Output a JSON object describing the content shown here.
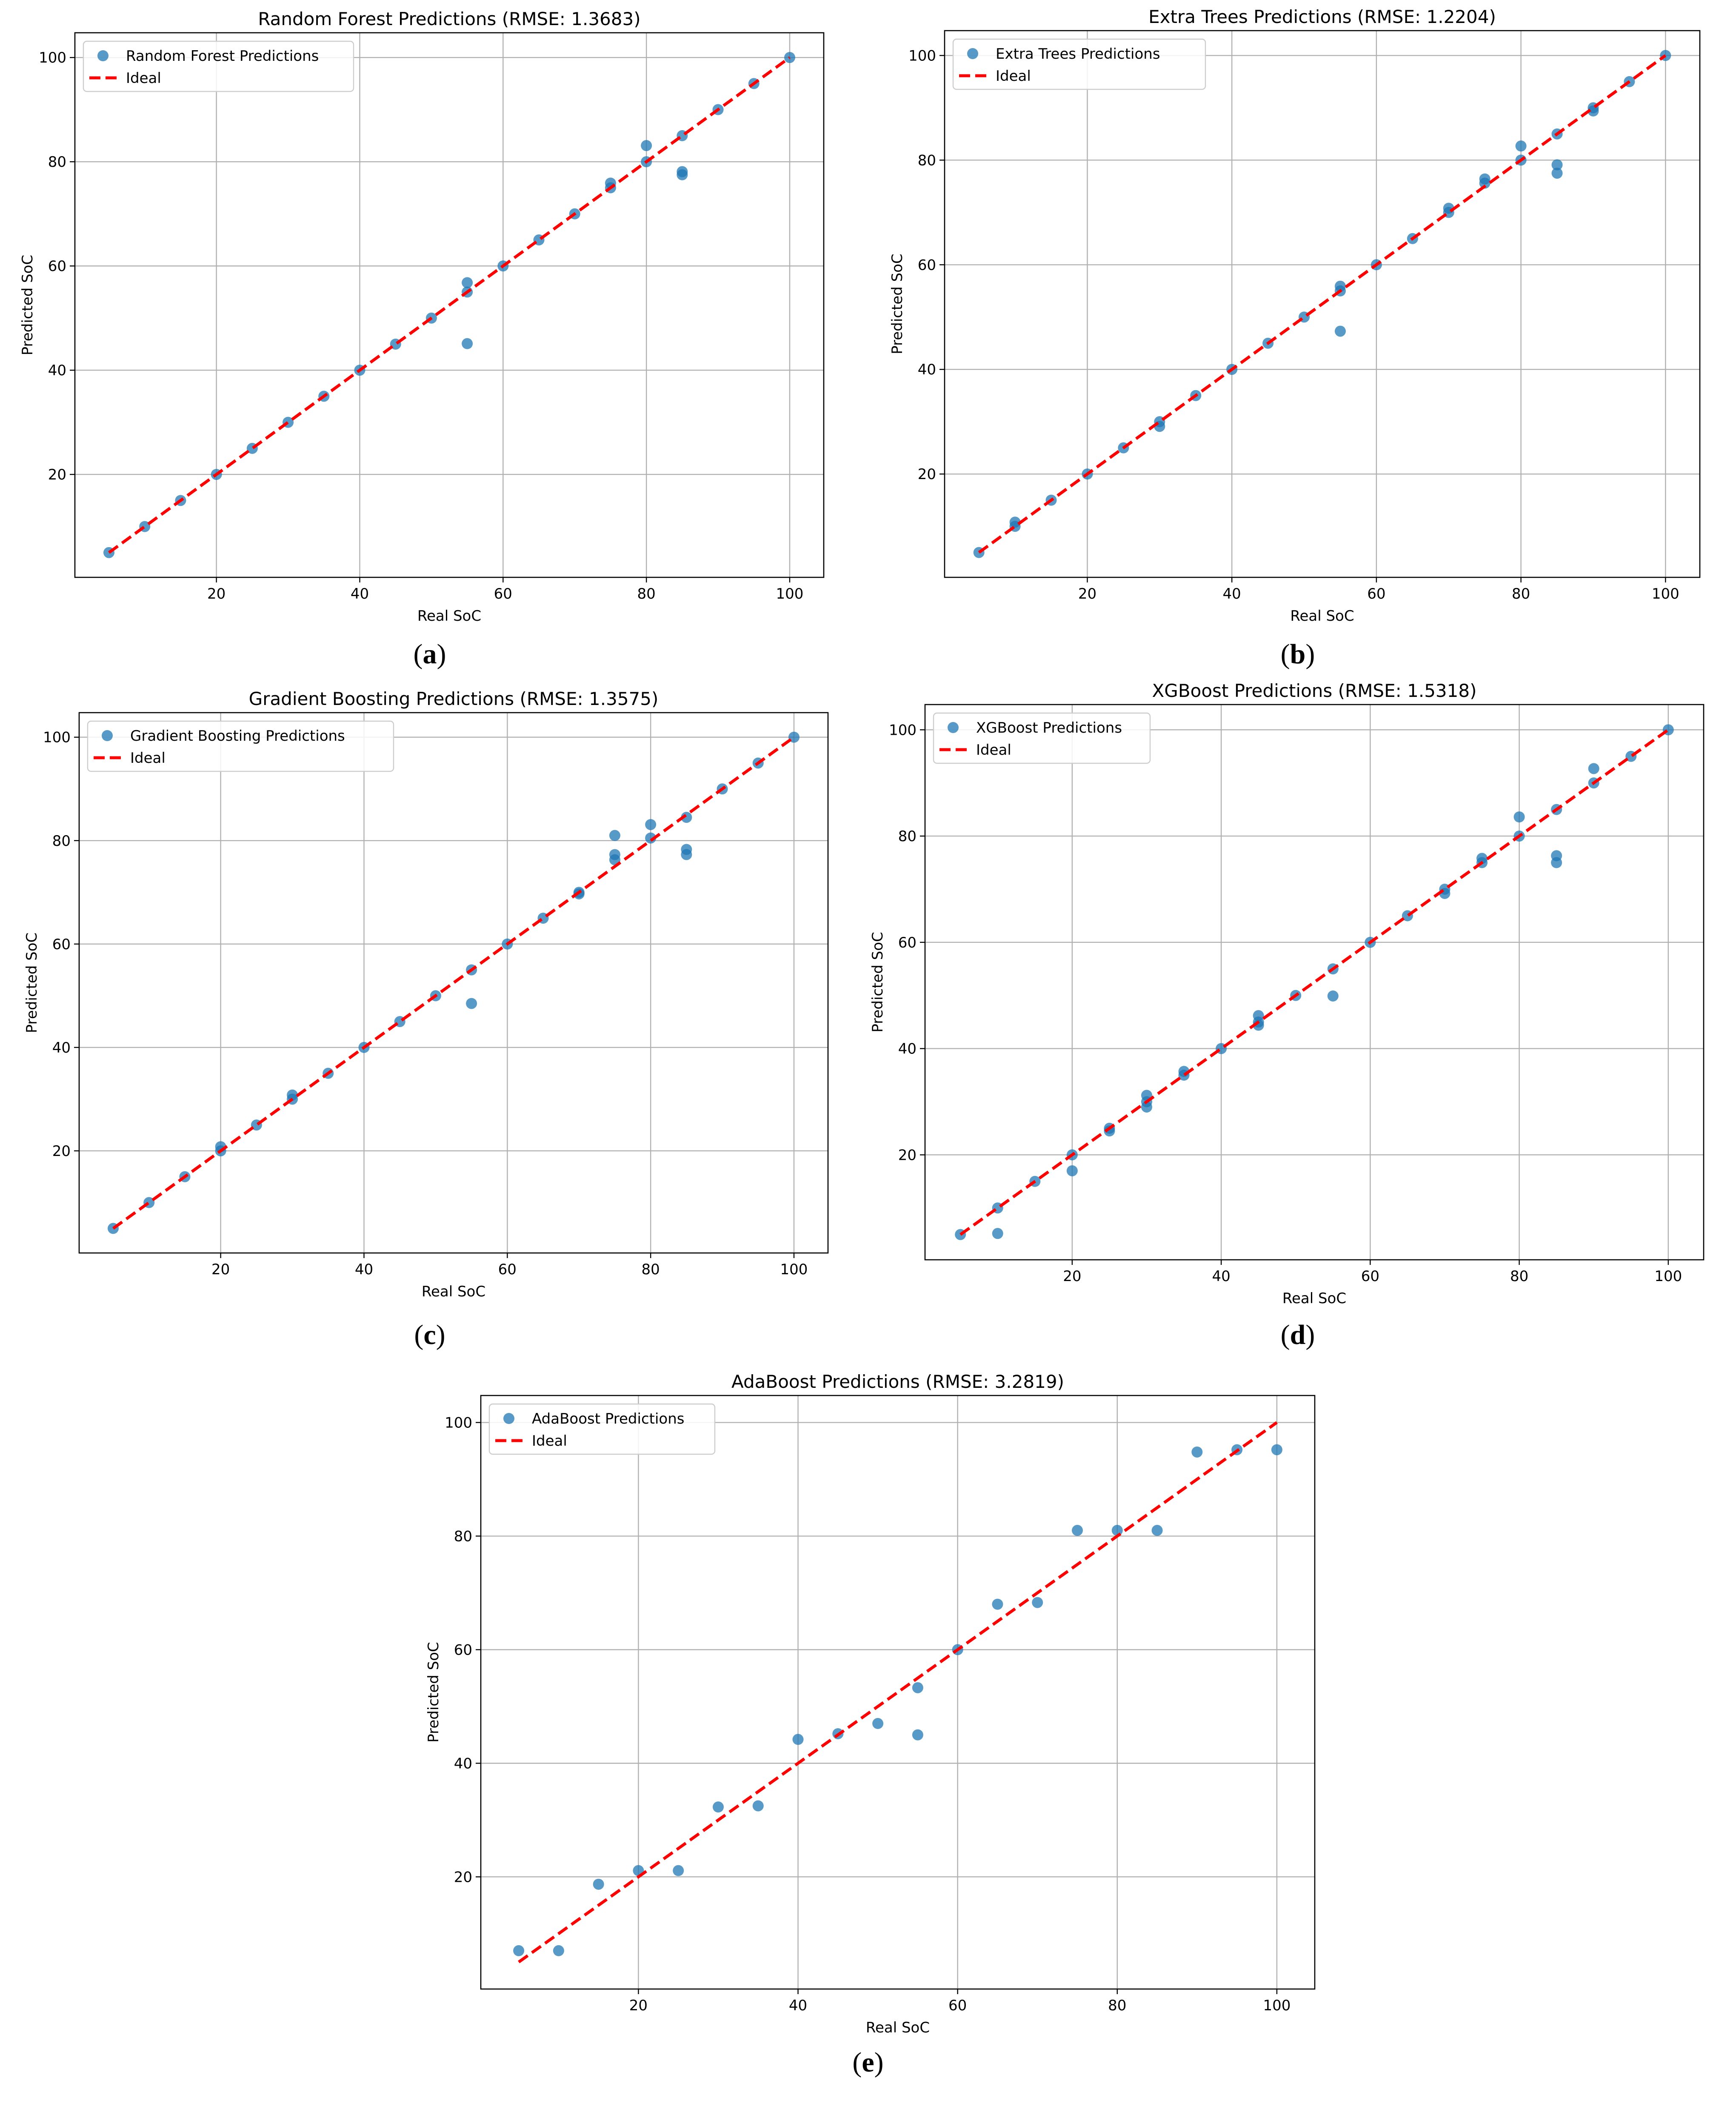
{
  "chart_data": [
    {
      "type": "scatter",
      "title": "Random Forest Predictions (RMSE: 1.3683)",
      "xlabel": "Real SoC",
      "ylabel": "Predicted SoC",
      "xlim": [
        0.25,
        104.75
      ],
      "ylim": [
        0.25,
        104.75
      ],
      "xticks": [
        20,
        40,
        60,
        80,
        100
      ],
      "yticks": [
        20,
        40,
        60,
        80,
        100
      ],
      "grid": true,
      "legend_position": "upper-left",
      "caption": "a",
      "series": [
        {
          "name": "Random Forest Predictions",
          "color": "#1f77b4",
          "points": [
            [
              5,
              5
            ],
            [
              10,
              10
            ],
            [
              15,
              15
            ],
            [
              20,
              20
            ],
            [
              25,
              25
            ],
            [
              30,
              30
            ],
            [
              35,
              35
            ],
            [
              40,
              40
            ],
            [
              45,
              45
            ],
            [
              50,
              50
            ],
            [
              55,
              55
            ],
            [
              55,
              56.8
            ],
            [
              55,
              45.1
            ],
            [
              60,
              60
            ],
            [
              65,
              65
            ],
            [
              70,
              70
            ],
            [
              75,
              75
            ],
            [
              75,
              75.9
            ],
            [
              80,
              80
            ],
            [
              80,
              83.1
            ],
            [
              85,
              85
            ],
            [
              85,
              78.1
            ],
            [
              85,
              77.5
            ],
            [
              90,
              90
            ],
            [
              95,
              95
            ],
            [
              100,
              100
            ]
          ]
        },
        {
          "name": "Ideal",
          "color": "#ff0000",
          "line": [
            [
              5,
              5
            ],
            [
              100,
              100
            ]
          ]
        }
      ]
    },
    {
      "type": "scatter",
      "title": "Extra Trees Predictions (RMSE: 1.2204)",
      "xlabel": "Real SoC",
      "ylabel": "Predicted SoC",
      "xlim": [
        0.25,
        104.75
      ],
      "ylim": [
        0.25,
        104.75
      ],
      "xticks": [
        20,
        40,
        60,
        80,
        100
      ],
      "yticks": [
        20,
        40,
        60,
        80,
        100
      ],
      "grid": true,
      "legend_position": "upper-left",
      "caption": "b",
      "series": [
        {
          "name": "Extra Trees Predictions",
          "color": "#1f77b4",
          "points": [
            [
              5,
              5
            ],
            [
              10,
              10
            ],
            [
              10,
              10.8
            ],
            [
              15,
              15
            ],
            [
              20,
              20
            ],
            [
              25,
              25
            ],
            [
              30,
              30
            ],
            [
              30,
              29.1
            ],
            [
              35,
              35
            ],
            [
              40,
              40
            ],
            [
              45,
              45
            ],
            [
              50,
              50
            ],
            [
              55,
              55
            ],
            [
              55,
              55.9
            ],
            [
              55,
              47.3
            ],
            [
              60,
              60
            ],
            [
              65,
              65
            ],
            [
              70,
              70
            ],
            [
              70,
              70.8
            ],
            [
              75,
              75.6
            ],
            [
              75,
              76.4
            ],
            [
              80,
              80
            ],
            [
              80,
              82.7
            ],
            [
              85,
              85
            ],
            [
              85,
              79.1
            ],
            [
              85,
              77.5
            ],
            [
              90,
              90
            ],
            [
              90,
              89.4
            ],
            [
              95,
              95
            ],
            [
              100,
              100
            ]
          ]
        },
        {
          "name": "Ideal",
          "color": "#ff0000",
          "line": [
            [
              5,
              5
            ],
            [
              100,
              100
            ]
          ]
        }
      ]
    },
    {
      "type": "scatter",
      "title": "Gradient Boosting Predictions (RMSE: 1.3575)",
      "xlabel": "Real SoC",
      "ylabel": "Predicted SoC",
      "xlim": [
        0.25,
        104.75
      ],
      "ylim": [
        0.25,
        104.75
      ],
      "xticks": [
        20,
        40,
        60,
        80,
        100
      ],
      "yticks": [
        20,
        40,
        60,
        80,
        100
      ],
      "grid": true,
      "legend_position": "upper-left",
      "caption": "c",
      "series": [
        {
          "name": "Gradient Boosting Predictions",
          "color": "#1f77b4",
          "points": [
            [
              5,
              5
            ],
            [
              10,
              10
            ],
            [
              15,
              15
            ],
            [
              20,
              20
            ],
            [
              20,
              20.8
            ],
            [
              25,
              25
            ],
            [
              30,
              30
            ],
            [
              30,
              30.8
            ],
            [
              35,
              35
            ],
            [
              40,
              40
            ],
            [
              45,
              45
            ],
            [
              50,
              50
            ],
            [
              55,
              55
            ],
            [
              55,
              48.5
            ],
            [
              60,
              60
            ],
            [
              65,
              65
            ],
            [
              70,
              70
            ],
            [
              70,
              69.7
            ],
            [
              75,
              76.3
            ],
            [
              75,
              77.3
            ],
            [
              75,
              81
            ],
            [
              80,
              80.5
            ],
            [
              80,
              83.1
            ],
            [
              85,
              84.5
            ],
            [
              85,
              78.3
            ],
            [
              85,
              77.3
            ],
            [
              90,
              90
            ],
            [
              95,
              95
            ],
            [
              100,
              100
            ]
          ]
        },
        {
          "name": "Ideal",
          "color": "#ff0000",
          "line": [
            [
              5,
              5
            ],
            [
              100,
              100
            ]
          ]
        }
      ]
    },
    {
      "type": "scatter",
      "title": "XGBoost Predictions (RMSE: 1.5318)",
      "xlabel": "Real SoC",
      "ylabel": "Predicted SoC",
      "xlim": [
        0.25,
        104.75
      ],
      "ylim": [
        0.25,
        104.75
      ],
      "xticks": [
        20,
        40,
        60,
        80,
        100
      ],
      "yticks": [
        20,
        40,
        60,
        80,
        100
      ],
      "grid": true,
      "legend_position": "upper-left",
      "caption": "d",
      "series": [
        {
          "name": "XGBoost Predictions",
          "color": "#1f77b4",
          "points": [
            [
              5,
              5
            ],
            [
              10,
              10
            ],
            [
              10,
              5.2
            ],
            [
              15,
              15
            ],
            [
              20,
              20
            ],
            [
              20,
              17
            ],
            [
              25,
              25
            ],
            [
              25,
              24.5
            ],
            [
              30,
              30
            ],
            [
              30,
              29
            ],
            [
              30,
              31.2
            ],
            [
              35,
              35
            ],
            [
              35,
              35.7
            ],
            [
              40,
              40
            ],
            [
              45,
              45
            ],
            [
              45,
              46.2
            ],
            [
              45,
              44.4
            ],
            [
              50,
              50
            ],
            [
              55,
              55
            ],
            [
              55,
              49.9
            ],
            [
              60,
              60
            ],
            [
              65,
              65
            ],
            [
              70,
              70
            ],
            [
              70,
              69.2
            ],
            [
              75,
              75
            ],
            [
              75,
              75.8
            ],
            [
              80,
              80
            ],
            [
              80,
              83.6
            ],
            [
              85,
              85
            ],
            [
              85,
              76.3
            ],
            [
              85,
              75
            ],
            [
              90,
              90
            ],
            [
              90,
              92.7
            ],
            [
              95,
              95
            ],
            [
              100,
              100
            ]
          ]
        },
        {
          "name": "Ideal",
          "color": "#ff0000",
          "line": [
            [
              5,
              5
            ],
            [
              100,
              100
            ]
          ]
        }
      ]
    },
    {
      "type": "scatter",
      "title": "AdaBoost Predictions (RMSE: 3.2819)",
      "xlabel": "Real SoC",
      "ylabel": "Predicted SoC",
      "xlim": [
        0.25,
        104.75
      ],
      "ylim": [
        0.25,
        104.75
      ],
      "xticks": [
        20,
        40,
        60,
        80,
        100
      ],
      "yticks": [
        20,
        40,
        60,
        80,
        100
      ],
      "grid": true,
      "legend_position": "upper-left",
      "caption": "e",
      "series": [
        {
          "name": "AdaBoost Predictions",
          "color": "#1f77b4",
          "points": [
            [
              5,
              7
            ],
            [
              10,
              7
            ],
            [
              15,
              18.7
            ],
            [
              20,
              21.1
            ],
            [
              25,
              21.1
            ],
            [
              30,
              32.3
            ],
            [
              35,
              32.5
            ],
            [
              40,
              44.2
            ],
            [
              45,
              45.2
            ],
            [
              50,
              47
            ],
            [
              55,
              53.3
            ],
            [
              55,
              45
            ],
            [
              60,
              60
            ],
            [
              65,
              68
            ],
            [
              70,
              68.3
            ],
            [
              75,
              81
            ],
            [
              80,
              81
            ],
            [
              85,
              81
            ],
            [
              90,
              94.8
            ],
            [
              95,
              95.2
            ],
            [
              100,
              95.2
            ]
          ]
        },
        {
          "name": "Ideal",
          "color": "#ff0000",
          "line": [
            [
              5,
              5
            ],
            [
              100,
              100
            ]
          ]
        }
      ]
    }
  ]
}
